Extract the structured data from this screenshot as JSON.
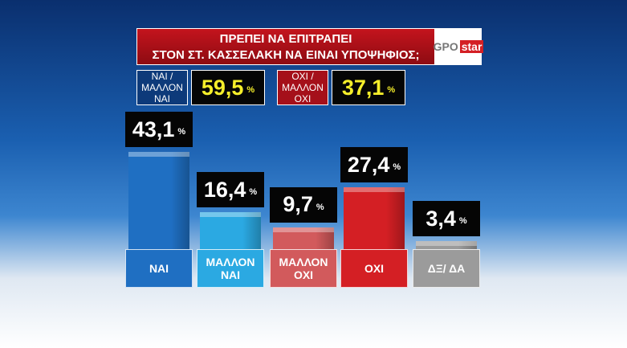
{
  "chart_data": {
    "type": "bar",
    "title_lines": [
      "ΠΡΕΠΕΙ ΝΑ ΕΠΙΤΡΑΠΕΙ",
      "ΣΤΟΝ ΣΤ. ΚΑΣΣΕΛΑΚΗ ΝΑ ΕΙΝΑΙ ΥΠΟΨΗΦΙΟΣ;"
    ],
    "logo": [
      "GPO",
      "star"
    ],
    "unit": "%",
    "summary": [
      {
        "label": "ΝΑΙ / ΜΑΛΛΟΝ ΝΑΙ",
        "value": 59.5,
        "value_label": "59,5",
        "color": "#0d3a7a"
      },
      {
        "label": "ΟΧΙ / ΜΑΛΛΟΝ ΟΧΙ",
        "value": 37.1,
        "value_label": "37,1",
        "color": "#a5101a"
      }
    ],
    "categories": [
      "ΝΑΙ",
      "ΜΑΛΛΟΝ ΝΑΙ",
      "ΜΑΛΛΟΝ ΟΧΙ",
      "ΟΧΙ",
      "ΔΞ/ ΔΑ"
    ],
    "values": [
      43.1,
      16.4,
      9.7,
      27.4,
      3.4
    ],
    "value_labels": [
      "43,1",
      "16,4",
      "9,7",
      "27,4",
      "3,4"
    ],
    "colors": [
      "#1f6fc2",
      "#2ba9e2",
      "#d25a5c",
      "#d41f24",
      "#9b9b9b"
    ]
  }
}
